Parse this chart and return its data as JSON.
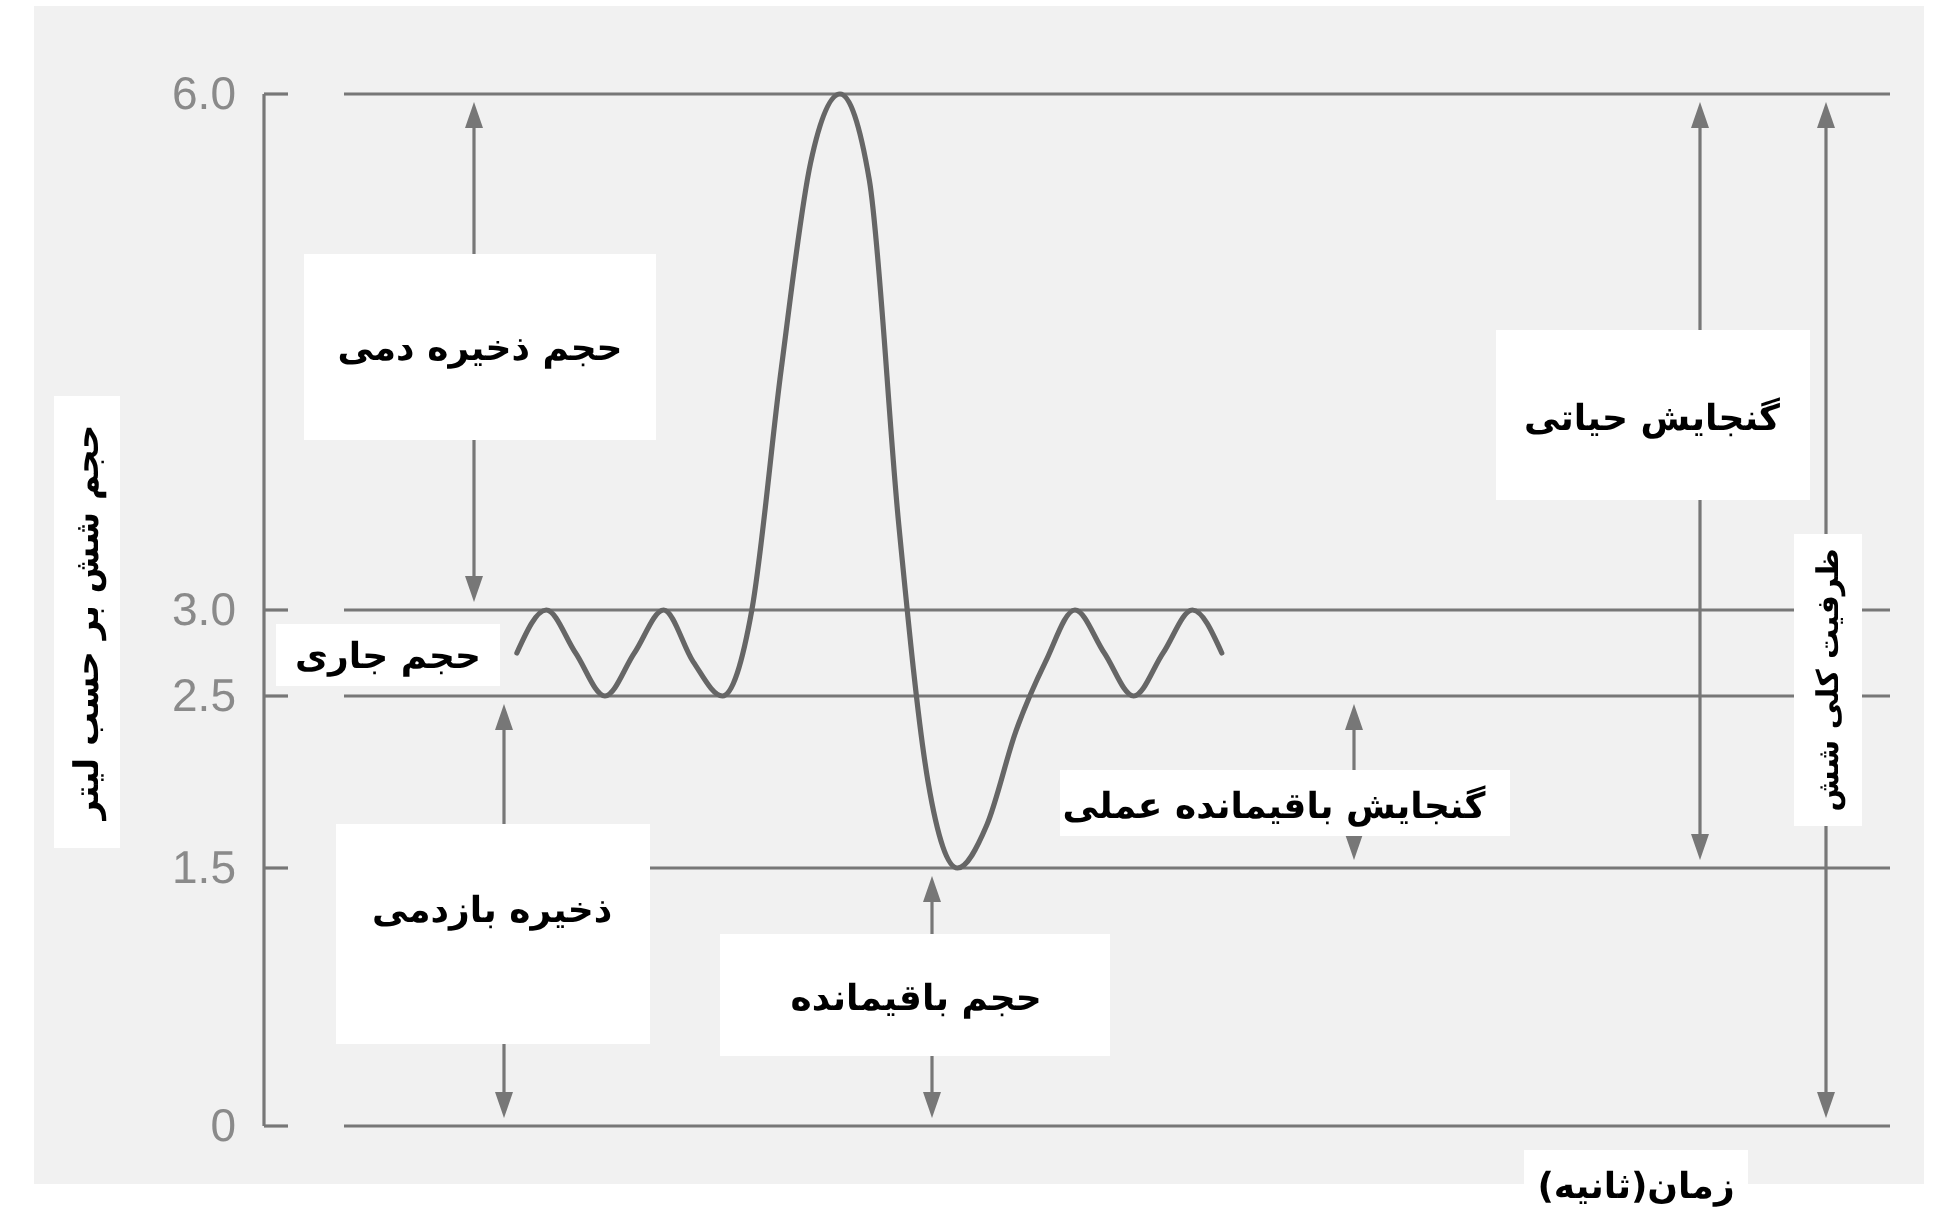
{
  "chart_data": {
    "type": "line",
    "xlabel": "زمان(ثانیه)",
    "ylabel": "حجم شش بر حسب لیتر",
    "categories": [
      null,
      null,
      null,
      null,
      null,
      null,
      null,
      null,
      null,
      null,
      null,
      null,
      null,
      null,
      null,
      null,
      null,
      null,
      null,
      null,
      null,
      null,
      null,
      null,
      null,
      null,
      null,
      null,
      null,
      null,
      null,
      null,
      null,
      null,
      null,
      null,
      null,
      null,
      null,
      null,
      null,
      null,
      null,
      null,
      null,
      null,
      null,
      null,
      null,
      null,
      null,
      null
    ],
    "series": [
      {
        "color": "#666666",
        "values": [
          null,
          null,
          null,
          null,
          null,
          2.75,
          3.0,
          2.75,
          2.5,
          2.75,
          3.0,
          2.7,
          2.5,
          3.0,
          4.4,
          5.6,
          6.0,
          5.5,
          3.5,
          2.0,
          1.5,
          1.75,
          2.3,
          2.7,
          3.0,
          2.75,
          2.5,
          2.75,
          3.0,
          2.75,
          null,
          null,
          null,
          null,
          null,
          null,
          null,
          null,
          null,
          null,
          null,
          null,
          null,
          null,
          null,
          null,
          null,
          null,
          null,
          null,
          null,
          null
        ]
      }
    ],
    "ylim": [
      0,
      6
    ],
    "yticks": [
      0,
      1.5,
      2.5,
      {
        "value": 3,
        "label": "3.0"
      },
      {
        "value": 6,
        "label": "6.0"
      }
    ],
    "ref_lines": [
      {
        "axis": "y",
        "value": 3
      },
      {
        "axis": "y",
        "value": 2.5
      },
      {
        "axis": "y",
        "value": 1.5
      }
    ],
    "annotations": [
      "حجم ذخیره دمی",
      "حجم جاری",
      "ذخیره بازدمی",
      "حجم باقیمانده",
      "گنجایش باقیمانده عملی",
      "گنجایش حیاتی",
      "ظرفیت کلی شش"
    ]
  }
}
